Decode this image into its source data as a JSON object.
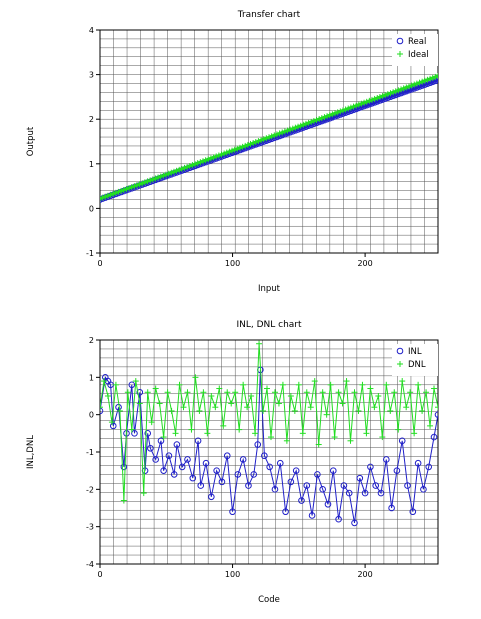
{
  "colors": {
    "real": "#2020c8",
    "ideal": "#22dd22",
    "grid": "#555555",
    "frame": "#000000"
  },
  "chart_data": [
    {
      "type": "scatter",
      "title": "Transfer chart",
      "xlabel": "Input",
      "ylabel": "Output",
      "xlim": [
        0,
        255
      ],
      "ylim": [
        -1,
        4
      ],
      "xticks": [
        0,
        100,
        200
      ],
      "yticks": [
        -1,
        0,
        1,
        2,
        3,
        4
      ],
      "grid": true,
      "legend": "top-right",
      "series": [
        {
          "name": "Real",
          "marker": "circle",
          "color": "#2020c8",
          "line": {
            "x0": 0,
            "y0": 0.2,
            "x1": 255,
            "y1": 2.88
          }
        },
        {
          "name": "Ideal",
          "marker": "plus",
          "color": "#22dd22",
          "line": {
            "x0": 0,
            "y0": 0.22,
            "x1": 255,
            "y1": 2.97
          }
        }
      ]
    },
    {
      "type": "line",
      "title": "INL, DNL chart",
      "xlabel": "Code",
      "ylabel": "INL,DNL",
      "xlim": [
        0,
        255
      ],
      "ylim": [
        -4,
        2
      ],
      "xticks": [
        0,
        100,
        200
      ],
      "yticks": [
        -4,
        -3,
        -2,
        -1,
        0,
        1,
        2
      ],
      "grid": true,
      "legend": "top-right",
      "series": [
        {
          "name": "INL",
          "marker": "circle",
          "color": "#2020c8",
          "x": [
            0,
            4,
            6,
            8,
            10,
            14,
            18,
            20,
            24,
            26,
            30,
            34,
            36,
            38,
            42,
            46,
            48,
            52,
            56,
            58,
            62,
            66,
            70,
            74,
            76,
            80,
            84,
            88,
            92,
            96,
            100,
            104,
            108,
            112,
            116,
            119,
            121,
            124,
            128,
            132,
            136,
            140,
            144,
            148,
            152,
            156,
            160,
            164,
            168,
            172,
            176,
            180,
            184,
            188,
            192,
            196,
            200,
            204,
            208,
            212,
            216,
            220,
            224,
            228,
            232,
            236,
            240,
            244,
            248,
            252,
            255
          ],
          "y": [
            0.1,
            1.0,
            0.9,
            0.8,
            -0.3,
            0.2,
            -1.4,
            -0.5,
            0.8,
            -0.5,
            0.6,
            -1.5,
            -0.5,
            -0.9,
            -1.2,
            -0.7,
            -1.5,
            -1.1,
            -1.6,
            -0.8,
            -1.4,
            -1.2,
            -1.7,
            -0.7,
            -1.9,
            -1.3,
            -2.2,
            -1.5,
            -1.8,
            -1.1,
            -2.6,
            -1.6,
            -1.2,
            -1.9,
            -1.6,
            -0.8,
            1.2,
            -1.1,
            -1.4,
            -2.0,
            -1.3,
            -2.6,
            -1.8,
            -1.5,
            -2.3,
            -1.9,
            -2.7,
            -1.6,
            -2.0,
            -2.4,
            -1.5,
            -2.8,
            -1.9,
            -2.1,
            -2.9,
            -1.7,
            -2.1,
            -1.4,
            -1.9,
            -2.1,
            -1.2,
            -2.5,
            -1.5,
            -0.7,
            -1.9,
            -2.6,
            -1.3,
            -2.0,
            -1.4,
            -0.6,
            0.0
          ]
        },
        {
          "name": "DNL",
          "marker": "plus",
          "color": "#22dd22",
          "x": [
            0,
            3,
            6,
            9,
            12,
            15,
            18,
            21,
            24,
            27,
            30,
            33,
            36,
            39,
            42,
            45,
            48,
            51,
            54,
            57,
            60,
            63,
            66,
            69,
            72,
            75,
            78,
            81,
            84,
            87,
            90,
            93,
            96,
            99,
            102,
            105,
            108,
            111,
            114,
            117,
            120,
            123,
            126,
            129,
            132,
            135,
            138,
            141,
            144,
            147,
            150,
            153,
            156,
            159,
            162,
            165,
            168,
            171,
            174,
            177,
            180,
            183,
            186,
            189,
            192,
            195,
            198,
            201,
            204,
            207,
            210,
            213,
            216,
            219,
            222,
            225,
            228,
            231,
            234,
            237,
            240,
            243,
            246,
            249,
            252,
            255
          ],
          "y": [
            0.2,
            0.9,
            0.5,
            -0.2,
            0.8,
            0.1,
            -2.3,
            0.6,
            -0.4,
            0.9,
            0.3,
            -2.1,
            0.6,
            -0.2,
            0.7,
            0.3,
            -0.6,
            0.6,
            0.1,
            -0.5,
            0.8,
            0.2,
            0.6,
            -0.4,
            1.0,
            0.1,
            0.6,
            -0.5,
            0.5,
            0.2,
            0.7,
            -0.3,
            0.6,
            0.3,
            0.6,
            -0.4,
            0.8,
            0.2,
            0.5,
            -0.5,
            1.9,
            0.1,
            0.7,
            -0.6,
            0.6,
            0.3,
            0.8,
            -0.7,
            0.5,
            0.1,
            0.8,
            -0.5,
            0.6,
            0.2,
            0.9,
            -0.8,
            0.6,
            0.0,
            0.8,
            -0.6,
            0.6,
            0.3,
            0.9,
            -0.7,
            0.6,
            0.1,
            0.8,
            -0.5,
            0.7,
            0.2,
            0.5,
            -0.6,
            0.8,
            0.1,
            0.6,
            -0.4,
            0.9,
            0.2,
            0.6,
            -0.5,
            0.8,
            0.1,
            0.6,
            -0.3,
            0.7,
            0.2
          ]
        }
      ]
    }
  ]
}
